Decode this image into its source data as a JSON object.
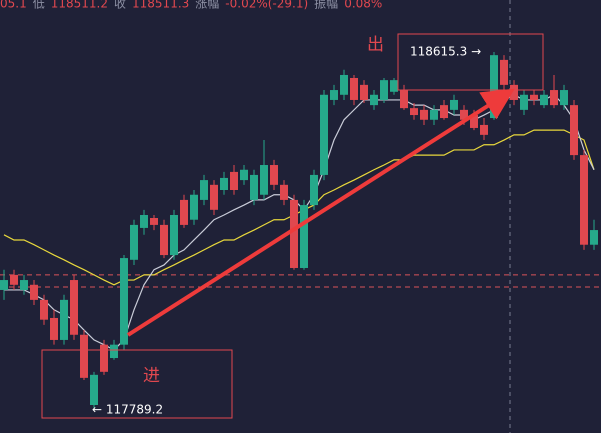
{
  "chart_data": {
    "type": "candlestick",
    "header": {
      "lead": "05.1",
      "items": [
        {
          "label": "低",
          "value": "118511.2"
        },
        {
          "label": "收",
          "value": "118511.3"
        },
        {
          "label": "涨幅",
          "value": "-0.02%(-29.1)"
        },
        {
          "label": "振幅",
          "value": "0.08%"
        }
      ]
    },
    "annotations": {
      "exit": "出",
      "entry": "进",
      "high_label": "118615.3 →",
      "low_label": "← 117789.2"
    },
    "up_color": "#26a98b",
    "down_color": "#e0484f",
    "ylim": [
      117731,
      118736
    ],
    "open": [
      118063,
      118098,
      118063,
      118075,
      118040,
      117998,
      117947,
      118086,
      117959,
      117796,
      117936,
      117905,
      117936,
      118133,
      118207,
      118230,
      118214,
      118144,
      118272,
      118226,
      118272,
      118307,
      118295,
      118337,
      118318,
      118272,
      118284,
      118353,
      118307,
      118272,
      118114,
      118260,
      118330,
      118504,
      118516,
      118555,
      118539,
      118492,
      118504,
      118523,
      118527,
      118485,
      118481,
      118458,
      118492,
      118481,
      118481,
      118469,
      118446,
      118462,
      118597,
      118539,
      118481,
      118516,
      118492,
      118527,
      118492,
      118492,
      118376,
      118168
    ],
    "high": [
      118110,
      118110,
      118098,
      118086,
      118052,
      118017,
      118052,
      118098,
      117970,
      117873,
      117947,
      117947,
      118144,
      118226,
      118249,
      118237,
      118226,
      118249,
      118284,
      118295,
      118330,
      118318,
      118337,
      118353,
      118353,
      118342,
      118411,
      118365,
      118318,
      118284,
      118272,
      118342,
      118527,
      118539,
      118574,
      118562,
      118550,
      118527,
      118555,
      118555,
      118539,
      118497,
      118492,
      118492,
      118504,
      118516,
      118492,
      118481,
      118462,
      118615.3,
      118608,
      118550,
      118527,
      118527,
      118527,
      118562,
      118539,
      118504,
      118388,
      118226
    ],
    "low": [
      118040,
      118063,
      118052,
      118028,
      117982,
      117936,
      117936,
      117947,
      117854,
      117789.2,
      117866,
      117901,
      117924,
      118121,
      118191,
      118202,
      118137,
      118133,
      118207,
      118214,
      118260,
      118237,
      118284,
      118284,
      118307,
      118260,
      118272,
      118295,
      118260,
      118110,
      118110,
      118249,
      118318,
      118492,
      118504,
      118492,
      118497,
      118481,
      118497,
      118516,
      118481,
      118458,
      118446,
      118446,
      118458,
      118469,
      118446,
      118434,
      118411,
      118458,
      118527,
      118492,
      118469,
      118492,
      118485,
      118485,
      118481,
      118365,
      118156,
      118156
    ],
    "close": [
      118086,
      118075,
      118086,
      118040,
      117994,
      117947,
      118040,
      117959,
      117859,
      117866,
      117873,
      117936,
      118137,
      118214,
      118237,
      118214,
      118144,
      118237,
      118214,
      118284,
      118318,
      118249,
      118323,
      118295,
      118342,
      118330,
      118353,
      118307,
      118272,
      118114,
      118260,
      118330,
      118516,
      118527,
      118562,
      118504,
      118504,
      118516,
      118550,
      118550,
      118485,
      118469,
      118458,
      118481,
      118462,
      118504,
      118458,
      118439,
      118423,
      118608,
      118539,
      118504,
      118516,
      118504,
      118516,
      118492,
      118527,
      118376,
      118168,
      118202
    ],
    "ma": [
      {
        "color": "#e8d83c",
        "values": [
          118191,
          118179,
          118179,
          118168,
          118156,
          118144,
          118133,
          118121,
          118110,
          118098,
          118086,
          118075,
          118086,
          118086,
          118098,
          118098,
          118110,
          118121,
          118133,
          118144,
          118156,
          118168,
          118179,
          118179,
          118191,
          118202,
          118214,
          118226,
          118226,
          118237,
          118249,
          118260,
          118284,
          118295,
          118307,
          118318,
          118330,
          118342,
          118353,
          118365,
          118365,
          118376,
          118376,
          118376,
          118376,
          118388,
          118388,
          118388,
          118400,
          118400,
          118411,
          118423,
          118423,
          118434,
          118434,
          118434,
          118434,
          118423,
          118411,
          118342
        ]
      },
      {
        "color": "#c9ccd8",
        "values": [
          118063,
          118063,
          118063,
          118052,
          118040,
          118017,
          118005,
          117994,
          117970,
          117947,
          117936,
          117924,
          117947,
          118017,
          118075,
          118110,
          118121,
          118144,
          118156,
          118179,
          118202,
          118226,
          118237,
          118249,
          118260,
          118272,
          118272,
          118284,
          118284,
          118272,
          118249,
          118284,
          118342,
          118411,
          118458,
          118481,
          118504,
          118504,
          118504,
          118504,
          118504,
          118492,
          118492,
          118481,
          118481,
          118469,
          118469,
          118458,
          118469,
          118481,
          118504,
          118516,
          118504,
          118504,
          118504,
          118516,
          118492,
          118458,
          118388,
          118342
        ]
      }
    ],
    "levels": [
      {
        "value": 118098,
        "color": "#d9545a"
      },
      {
        "value": 118070,
        "color": "#d9545a"
      }
    ]
  }
}
